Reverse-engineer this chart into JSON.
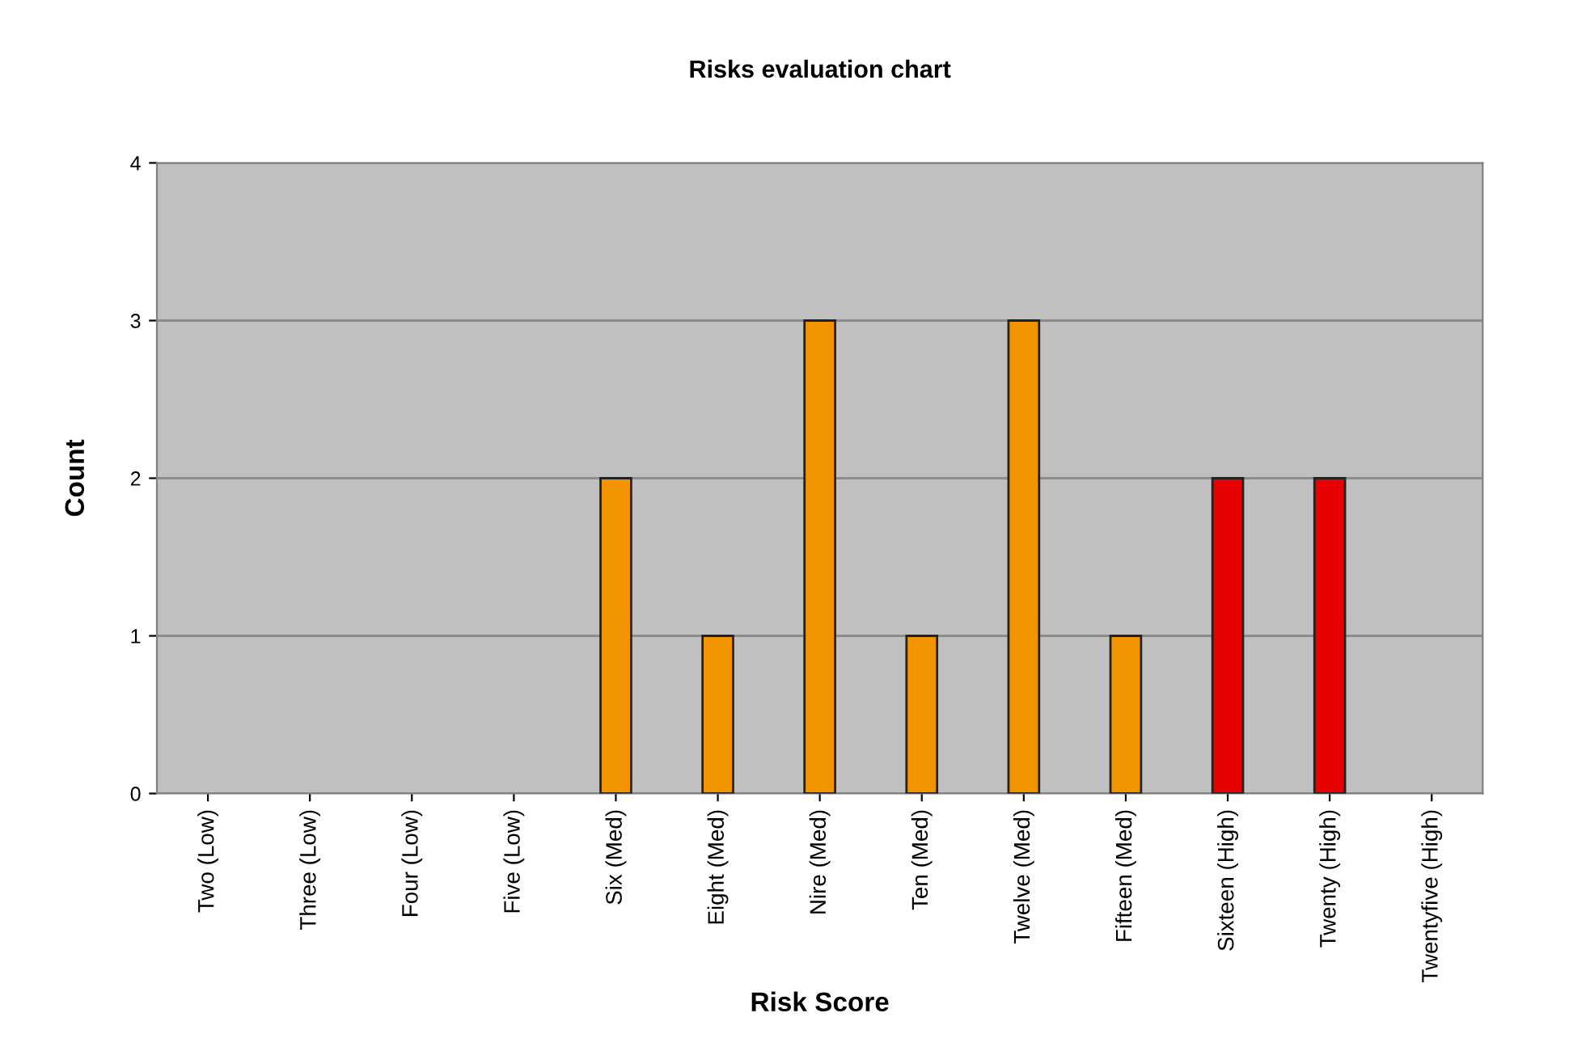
{
  "chart_data": {
    "type": "bar",
    "title": "Risks evaluation chart",
    "xlabel": "Risk Score",
    "ylabel": "Count",
    "categories": [
      "Two (Low)",
      "Three (Low)",
      "Four (Low)",
      "Five (Low)",
      "Six (Med)",
      "Eight (Med)",
      "Nire (Med)",
      "Ten (Med)",
      "Twelve (Med)",
      "Fifteen (Med)",
      "Sixteen (High)",
      "Twenty (High)",
      "Twentyfive (High)"
    ],
    "values": [
      0,
      0,
      0,
      0,
      2,
      1,
      3,
      1,
      3,
      1,
      2,
      2,
      0
    ],
    "colors": [
      "#f29400",
      "#f29400",
      "#f29400",
      "#f29400",
      "#f29400",
      "#f29400",
      "#f29400",
      "#f29400",
      "#f29400",
      "#f29400",
      "#e60000",
      "#e60000",
      "#e60000"
    ],
    "ylim": [
      0,
      4
    ],
    "yticks": [
      0,
      1,
      2,
      3,
      4
    ],
    "grid": "y",
    "legend": false
  }
}
